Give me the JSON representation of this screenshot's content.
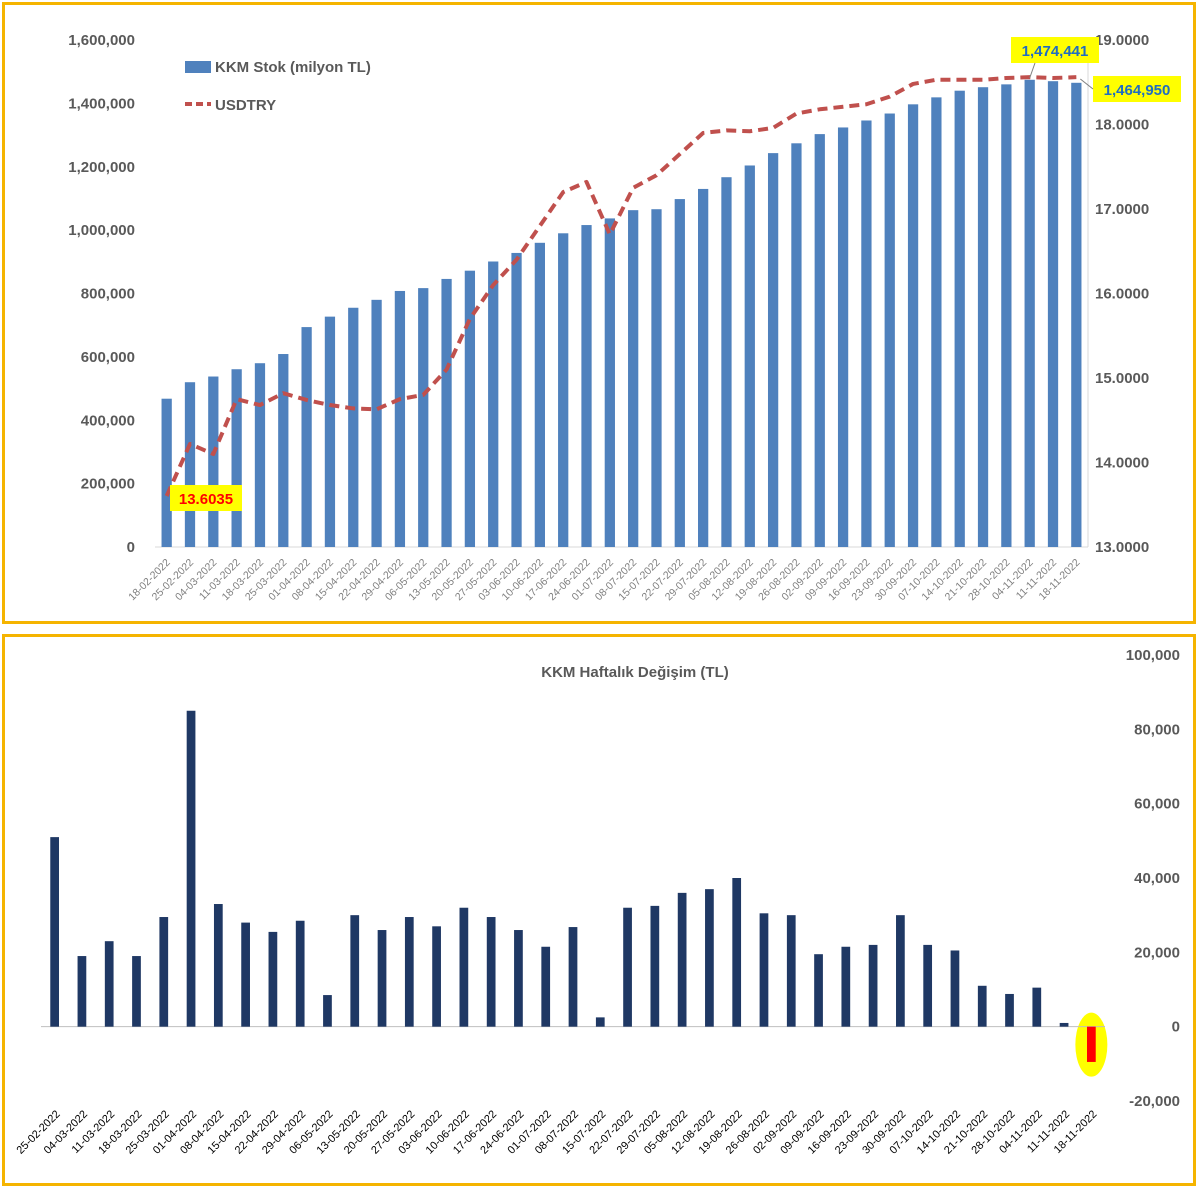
{
  "chart_data": [
    {
      "type": "bar",
      "title": "",
      "x": [
        "18-02-2022",
        "25-02-2022",
        "04-03-2022",
        "11-03-2022",
        "18-03-2022",
        "25-03-2022",
        "01-04-2022",
        "08-04-2022",
        "15-04-2022",
        "22-04-2022",
        "29-04-2022",
        "06-05-2022",
        "13-05-2022",
        "20-05-2022",
        "27-05-2022",
        "03-06-2022",
        "10-06-2022",
        "17-06-2022",
        "24-06-2022",
        "01-07-2022",
        "08-07-2022",
        "15-07-2022",
        "22-07-2022",
        "29-07-2022",
        "05-08-2022",
        "12-08-2022",
        "19-08-2022",
        "26-08-2022",
        "02-09-2022",
        "09-09-2022",
        "16-09-2022",
        "23-09-2022",
        "30-09-2022",
        "07-10-2022",
        "14-10-2022",
        "21-10-2022",
        "28-10-2022",
        "04-11-2022",
        "11-11-2022",
        "18-11-2022"
      ],
      "series": [
        {
          "name": "KKM Stok (milyon TL)",
          "type": "bar",
          "axis": "left",
          "color": "#4f81bd",
          "values": [
            468000,
            520000,
            538000,
            561000,
            580000,
            609000,
            694000,
            727000,
            755000,
            780000,
            808000,
            817000,
            846000,
            872000,
            901000,
            928000,
            960000,
            990000,
            1016000,
            1037000,
            1063000,
            1066000,
            1098000,
            1130000,
            1167000,
            1204000,
            1243000,
            1274000,
            1303000,
            1324000,
            1346000,
            1368000,
            1397000,
            1419000,
            1440000,
            1451000,
            1460000,
            1474441,
            1470000,
            1464950
          ]
        },
        {
          "name": "USDTRY",
          "type": "line",
          "axis": "right",
          "color": "#c0504d",
          "dashed": true,
          "values": [
            13.6035,
            14.22,
            14.1,
            14.75,
            14.68,
            14.82,
            14.74,
            14.68,
            14.64,
            14.63,
            14.75,
            14.8,
            15.1,
            15.7,
            16.1,
            16.4,
            16.8,
            17.2,
            17.32,
            16.7,
            17.25,
            17.4,
            17.65,
            17.9,
            17.93,
            17.92,
            17.96,
            18.13,
            18.18,
            18.21,
            18.24,
            18.33,
            18.48,
            18.53,
            18.53,
            18.53,
            18.55,
            18.56,
            18.55,
            18.56
          ]
        }
      ],
      "y_left": {
        "min": 0,
        "max": 1600000,
        "step": 200000,
        "ticks": [
          "0",
          "200,000",
          "400,000",
          "600,000",
          "800,000",
          "1,000,000",
          "1,200,000",
          "1,400,000",
          "1,600,000"
        ]
      },
      "y_right": {
        "min": 13,
        "max": 19,
        "step": 1,
        "ticks": [
          "13.0000",
          "14.0000",
          "15.0000",
          "16.0000",
          "17.0000",
          "18.0000",
          "19.0000"
        ]
      },
      "legend": {
        "placement": "top-left",
        "entries": [
          "KKM Stok (milyon TL)",
          "USDTRY"
        ]
      },
      "annotations": [
        {
          "text": "13.6035",
          "color": "#ff0000",
          "bg": "#ffff00",
          "series": "USDTRY",
          "index": 0
        },
        {
          "text": "1,474,441",
          "color": "#1f6dc2",
          "bg": "#ffff00",
          "series": "KKM Stok (milyon TL)",
          "index": 37
        },
        {
          "text": "1,464,950",
          "color": "#1f6dc2",
          "bg": "#ffff00",
          "series": "KKM Stok (milyon TL)",
          "index": 39
        }
      ],
      "grid": false
    },
    {
      "type": "bar",
      "title": "KKM Haftalık Değişim (TL)",
      "x": [
        "25-02-2022",
        "04-03-2022",
        "11-03-2022",
        "18-03-2022",
        "25-03-2022",
        "01-04-2022",
        "08-04-2022",
        "15-04-2022",
        "22-04-2022",
        "29-04-2022",
        "06-05-2022",
        "13-05-2022",
        "20-05-2022",
        "27-05-2022",
        "03-06-2022",
        "10-06-2022",
        "17-06-2022",
        "24-06-2022",
        "01-07-2022",
        "08-07-2022",
        "15-07-2022",
        "22-07-2022",
        "29-07-2022",
        "05-08-2022",
        "12-08-2022",
        "19-08-2022",
        "26-08-2022",
        "02-09-2022",
        "09-09-2022",
        "16-09-2022",
        "23-09-2022",
        "30-09-2022",
        "07-10-2022",
        "14-10-2022",
        "21-10-2022",
        "28-10-2022",
        "04-11-2022",
        "11-11-2022",
        "18-11-2022"
      ],
      "series": [
        {
          "name": "",
          "color": "#1f3864",
          "negative_color": "#ff0000",
          "values": [
            51000,
            19000,
            23000,
            19000,
            29500,
            85000,
            33000,
            28000,
            25500,
            28500,
            8500,
            30000,
            26000,
            29500,
            27000,
            32000,
            29500,
            26000,
            21500,
            26800,
            2500,
            32000,
            32500,
            36000,
            37000,
            40000,
            30500,
            30000,
            19500,
            21500,
            22000,
            30000,
            22000,
            20500,
            11000,
            8800,
            10500,
            1000,
            -9491
          ]
        }
      ],
      "y_right": {
        "min": -20000,
        "max": 100000,
        "step": 20000,
        "ticks": [
          "-20,000",
          "0",
          "20,000",
          "40,000",
          "60,000",
          "80,000",
          "100,000"
        ]
      },
      "highlight": {
        "index": 38,
        "color": "#ffff00"
      },
      "grid": false
    }
  ]
}
